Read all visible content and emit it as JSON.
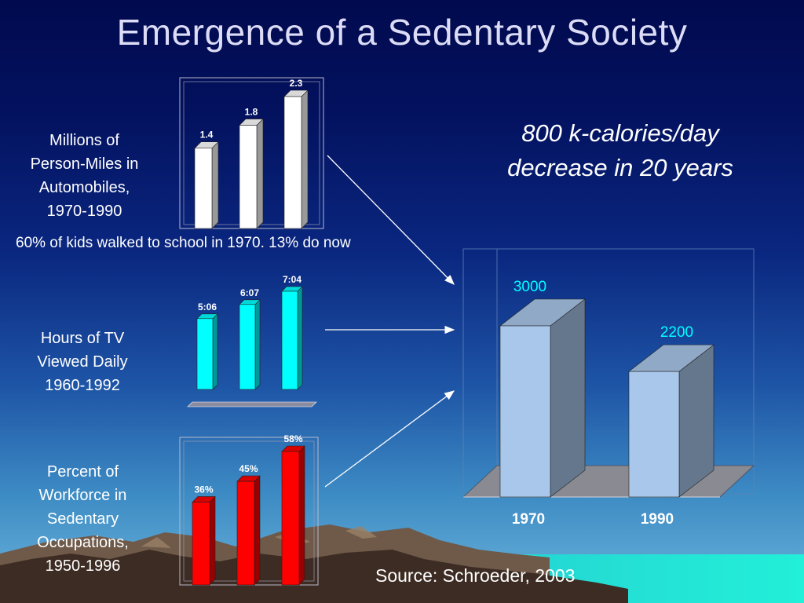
{
  "slide": {
    "title": "Emergence of a Sedentary Society",
    "label_miles": [
      "Millions of",
      "Person-Miles in",
      "Automobiles,",
      "1970-1990"
    ],
    "label_tv": [
      "Hours of TV",
      "Viewed Daily",
      "1960-1992"
    ],
    "label_workforce": [
      "Percent of",
      "Workforce in",
      "Sedentary",
      "Occupations,",
      "1950-1996"
    ],
    "calorie_note": [
      "800 k-calories/day",
      "decrease in 20 years"
    ],
    "walk_note": "60% of kids walked to school in 1970. 13% do now",
    "source": "Source: Schroeder, 2003"
  },
  "chart_data": [
    {
      "id": "auto-miles",
      "type": "bar",
      "values": [
        1.4,
        1.8,
        2.3
      ],
      "data_labels": [
        "1.4",
        "1.8",
        "2.3"
      ],
      "color": "#ffffff",
      "ylim": [
        0,
        2.3
      ]
    },
    {
      "id": "tv-hours",
      "type": "bar",
      "values": [
        5.1,
        6.117,
        7.067
      ],
      "data_labels": [
        "5:06",
        "6:07",
        "7:04"
      ],
      "color": "#00ffff",
      "ylim": [
        0,
        7.067
      ]
    },
    {
      "id": "sedentary-workforce",
      "type": "bar",
      "values": [
        36,
        45,
        58
      ],
      "data_labels": [
        "36%",
        "45%",
        "58%"
      ],
      "color": "#ff0000",
      "ylim": [
        0,
        58
      ]
    },
    {
      "id": "calories",
      "type": "bar",
      "categories": [
        "1970",
        "1990"
      ],
      "values": [
        3000,
        2200
      ],
      "data_labels": [
        "3000",
        "2200"
      ],
      "color": "#a9c7ea",
      "ylim": [
        0,
        3000
      ]
    }
  ]
}
